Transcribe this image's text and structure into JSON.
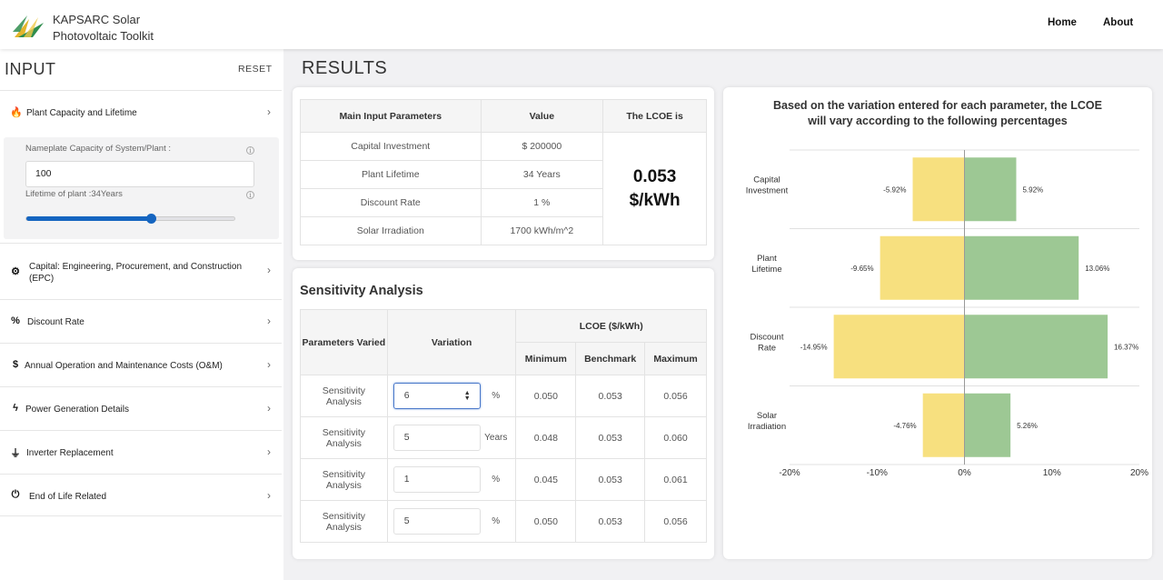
{
  "header": {
    "brand_line1": "KAPSARC Solar",
    "brand_line2": "Photovoltaic Toolkit",
    "nav": [
      "Home",
      "About"
    ]
  },
  "sidebar": {
    "title": "INPUT",
    "reset": "RESET",
    "sections": [
      {
        "label": "Plant Capacity and Lifetime",
        "icon": "flame-icon",
        "glyph": "🔥"
      },
      {
        "label": "Capital: Engineering, Procurement, and Construction (EPC)",
        "icon": "gear-icon",
        "glyph": "⚙"
      },
      {
        "label": "Discount Rate",
        "icon": "percent-icon",
        "glyph": "%"
      },
      {
        "label": "Annual Operation and Maintenance Costs (O&M)",
        "icon": "dollar-icon",
        "glyph": "$"
      },
      {
        "label": "Power Generation Details",
        "icon": "bolt-icon",
        "glyph": "ϟ"
      },
      {
        "label": "Inverter Replacement",
        "icon": "plug-icon",
        "glyph": "⏚"
      },
      {
        "label": "End of Life Related",
        "icon": "power-icon",
        "glyph": "⏻"
      }
    ],
    "capacity_label": "Nameplate Capacity of System/Plant :",
    "capacity_value": "100",
    "lifetime_label": "Lifetime of plant :34Years",
    "lifetime_fraction": 0.6
  },
  "results": {
    "title": "RESULTS",
    "table": {
      "headers": [
        "Main Input Parameters",
        "Value",
        "The LCOE is"
      ],
      "rows": [
        {
          "param": "Capital Investment",
          "value": "$ 200000"
        },
        {
          "param": "Plant Lifetime",
          "value": "34 Years"
        },
        {
          "param": "Discount Rate",
          "value": "1 %"
        },
        {
          "param": "Solar Irradiation",
          "value": "1700 kWh/m^2"
        }
      ],
      "lcoe_value": "0.053",
      "lcoe_unit": "$/kWh"
    },
    "sensitivity": {
      "title": "Sensitivity Analysis",
      "headers": {
        "params": "Parameters Varied",
        "variation": "Variation",
        "lcoe": "LCOE ($/kWh)",
        "min": "Minimum",
        "bench": "Benchmark",
        "max": "Maximum"
      },
      "rows": [
        {
          "label": "Sensitivity Analysis",
          "variation": "6",
          "unit": "%",
          "min": "0.050",
          "bench": "0.053",
          "max": "0.056"
        },
        {
          "label": "Sensitivity Analysis",
          "variation": "5",
          "unit": "Years",
          "min": "0.048",
          "bench": "0.053",
          "max": "0.060"
        },
        {
          "label": "Sensitivity Analysis",
          "variation": "1",
          "unit": "%",
          "min": "0.045",
          "bench": "0.053",
          "max": "0.061"
        },
        {
          "label": "Sensitivity Analysis",
          "variation": "5",
          "unit": "%",
          "min": "0.050",
          "bench": "0.053",
          "max": "0.056"
        }
      ]
    }
  },
  "chart_data": {
    "type": "bar",
    "orientation": "horizontal",
    "title": "Based on the variation entered for each parameter, the LCOE will vary according to the following percentages",
    "categories": [
      "Capital Investment",
      "Plant Lifetime",
      "Discount Rate",
      "Solar Irradiation"
    ],
    "series": [
      {
        "values": [
          -5.92,
          -9.65,
          -14.95,
          -4.76
        ],
        "labels": [
          "-5.92%",
          "-9.65%",
          "-14.95%",
          "-4.76%"
        ],
        "color": "#f7e07f"
      },
      {
        "values": [
          5.92,
          13.06,
          16.37,
          5.26
        ],
        "labels": [
          "5.92%",
          "13.06%",
          "16.37%",
          "5.26%"
        ],
        "color": "#9dc894"
      }
    ],
    "xlim": [
      -20,
      20
    ],
    "xticks": [
      "-20%",
      "-10%",
      "0%",
      "10%",
      "20%"
    ],
    "xtick_values": [
      -20,
      -10,
      0,
      10,
      20
    ],
    "grid": false
  }
}
